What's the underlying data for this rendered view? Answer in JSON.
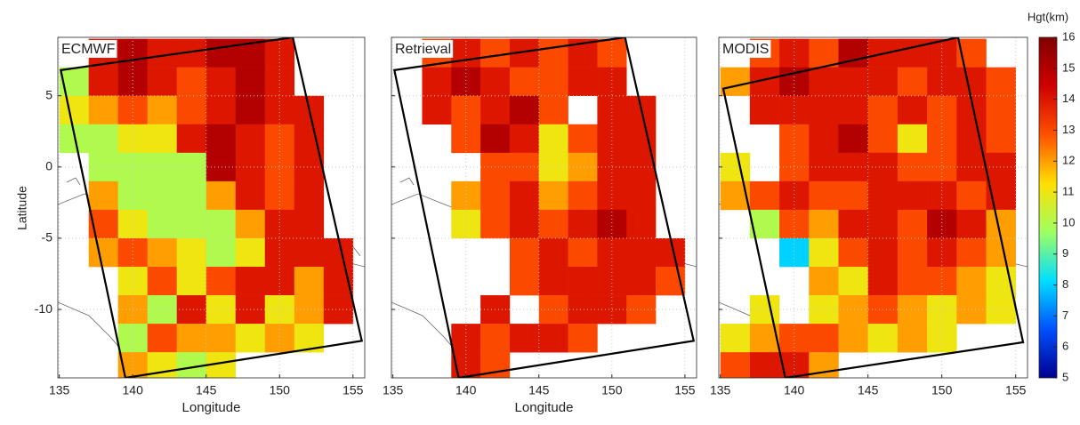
{
  "chart_data": [
    {
      "type": "heatmap",
      "title": "ECMWF",
      "xlabel": "Longitude",
      "ylabel": "Latitude",
      "x": [
        136,
        138,
        140,
        142,
        144,
        146,
        148,
        150,
        152,
        154
      ],
      "y": [
        8,
        6,
        4,
        2,
        0,
        -2,
        -4,
        -6,
        -8,
        -10,
        -12,
        -14
      ],
      "values": [
        [
          null,
          14,
          15,
          14,
          14,
          15,
          15,
          14,
          null,
          null
        ],
        [
          10,
          14,
          15,
          14,
          13,
          14,
          15,
          14,
          null,
          null
        ],
        [
          11,
          12,
          13,
          12,
          13,
          14,
          15,
          14,
          14,
          null
        ],
        [
          10,
          10,
          11,
          11,
          14,
          15,
          14,
          13,
          14,
          null
        ],
        [
          null,
          10,
          10,
          10,
          10,
          15,
          14,
          13,
          14,
          null
        ],
        [
          null,
          12,
          10,
          10,
          10,
          12,
          14,
          13,
          14,
          null
        ],
        [
          null,
          13,
          11,
          10,
          10,
          10,
          12,
          14,
          14,
          null
        ],
        [
          null,
          12,
          13,
          12,
          11,
          10,
          11,
          14,
          14,
          14
        ],
        [
          null,
          null,
          11,
          13,
          11,
          13,
          14,
          14,
          12,
          14
        ],
        [
          null,
          null,
          12,
          10,
          14,
          11,
          14,
          11,
          12,
          14
        ],
        [
          null,
          null,
          10,
          13,
          12,
          12,
          11,
          12,
          11,
          null
        ],
        [
          null,
          null,
          12,
          11,
          10,
          11,
          null,
          null,
          null,
          null
        ]
      ],
      "xlim": [
        134.9,
        155.8
      ],
      "ylim": [
        -14.8,
        9.1
      ],
      "xticks": [
        135,
        140,
        145,
        150,
        155
      ],
      "yticks": [
        5,
        0,
        -5,
        -10
      ],
      "show_ytick_labels": true,
      "grid": true,
      "swath": {
        "lon": [
          135.1,
          150.9,
          155.6,
          139.5
        ],
        "lat": [
          6.8,
          9.1,
          -12.2,
          -14.8
        ]
      }
    },
    {
      "type": "heatmap",
      "title": "Retrieval",
      "xlabel": "Longitude",
      "x": [
        136,
        138,
        140,
        142,
        144,
        146,
        148,
        150,
        152,
        154
      ],
      "y": [
        8,
        6,
        4,
        2,
        0,
        -2,
        -4,
        -6,
        -8,
        -10,
        -12,
        -14
      ],
      "values": [
        [
          null,
          13,
          14,
          13,
          14,
          13,
          14,
          13,
          null,
          null
        ],
        [
          null,
          14,
          15,
          14,
          13,
          13,
          14,
          14,
          null,
          null
        ],
        [
          null,
          14,
          13,
          14,
          15,
          13,
          null,
          14,
          14,
          null
        ],
        [
          null,
          null,
          13,
          15,
          14,
          11,
          13,
          14,
          14,
          null
        ],
        [
          null,
          null,
          null,
          13,
          13,
          11,
          12,
          14,
          14,
          null
        ],
        [
          null,
          null,
          12,
          13,
          14,
          12,
          13,
          14,
          14,
          null
        ],
        [
          null,
          null,
          11,
          13,
          14,
          13,
          14,
          15,
          14,
          null
        ],
        [
          null,
          null,
          null,
          null,
          13,
          14,
          13,
          14,
          14,
          14
        ],
        [
          null,
          null,
          null,
          null,
          13,
          14,
          14,
          14,
          14,
          13
        ],
        [
          null,
          null,
          null,
          14,
          null,
          13,
          14,
          14,
          13,
          null
        ],
        [
          null,
          null,
          14,
          13,
          14,
          14,
          13,
          null,
          null,
          null
        ],
        [
          null,
          null,
          14,
          13,
          null,
          null,
          null,
          null,
          null,
          null
        ]
      ],
      "xlim": [
        134.9,
        155.8
      ],
      "ylim": [
        -14.8,
        9.1
      ],
      "xticks": [
        135,
        140,
        145,
        150,
        155
      ],
      "yticks": [
        5,
        0,
        -5,
        -10
      ],
      "show_ytick_labels": false,
      "grid": true,
      "swath": {
        "lon": [
          135.1,
          150.9,
          155.6,
          139.5
        ],
        "lat": [
          6.8,
          9.1,
          -12.2,
          -14.8
        ]
      }
    },
    {
      "type": "heatmap",
      "title": "MODIS",
      "x": [
        136,
        138,
        140,
        142,
        144,
        146,
        148,
        150,
        152,
        154
      ],
      "y": [
        8,
        6,
        4,
        2,
        0,
        -2,
        -4,
        -6,
        -8,
        -10,
        -12,
        -14
      ],
      "values": [
        [
          null,
          13,
          14,
          13,
          15,
          14,
          14,
          14,
          13,
          null
        ],
        [
          12,
          14,
          15,
          14,
          14,
          14,
          13,
          14,
          14,
          13
        ],
        [
          null,
          14,
          14,
          14,
          14,
          13,
          14,
          13,
          14,
          13
        ],
        [
          null,
          null,
          13,
          14,
          15,
          13,
          11,
          13,
          14,
          13
        ],
        [
          11,
          null,
          13,
          14,
          14,
          14,
          13,
          13,
          14,
          14
        ],
        [
          12,
          13,
          14,
          13,
          13,
          14,
          14,
          14,
          13,
          14
        ],
        [
          null,
          10,
          13,
          12,
          14,
          14,
          13,
          15,
          14,
          12
        ],
        [
          null,
          null,
          8,
          11,
          13,
          14,
          13,
          14,
          13,
          12
        ],
        [
          null,
          null,
          null,
          12,
          11,
          14,
          13,
          13,
          12,
          11
        ],
        [
          null,
          11,
          null,
          11,
          12,
          13,
          12,
          11,
          12,
          11
        ],
        [
          11,
          12,
          13,
          13,
          12,
          11,
          12,
          11,
          null,
          null
        ],
        [
          13,
          14,
          14,
          12,
          null,
          null,
          null,
          null,
          null,
          null
        ]
      ],
      "xlim": [
        134.9,
        155.8
      ],
      "ylim": [
        -14.8,
        9.1
      ],
      "xticks": [
        135,
        140,
        145,
        150,
        155
      ],
      "yticks": [
        5,
        0,
        -5,
        -10
      ],
      "show_ytick_labels": false,
      "grid": true,
      "swath": {
        "lon": [
          135.2,
          151.1,
          155.5,
          139.4
        ],
        "lat": [
          5.5,
          9.1,
          -12.3,
          -14.8
        ]
      }
    },
    {
      "type": "colorbar",
      "label": "Hgt(km)",
      "lim": [
        5,
        16
      ],
      "ticks": [
        5,
        6,
        7,
        8,
        9,
        10,
        11,
        12,
        13,
        14,
        15,
        16
      ],
      "colormap": [
        "#00008f",
        "#0050ff",
        "#00dfff",
        "#9fff60",
        "#ffdf00",
        "#ff5000",
        "#d00000",
        "#800000"
      ]
    }
  ]
}
